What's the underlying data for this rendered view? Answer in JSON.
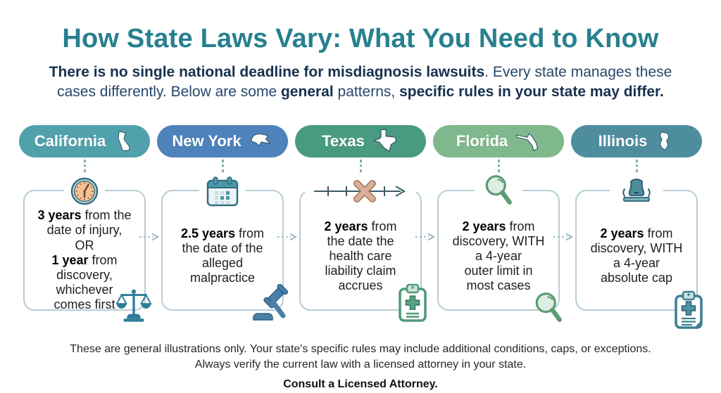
{
  "header": {
    "title": "How State Laws Vary: What You Need to Know",
    "subtitle_segments": [
      {
        "t": "There is no single national deadline for misdiagnosis lawsuits",
        "b": true
      },
      {
        "t": ". Every state manages these cases differently. Below are some "
      },
      {
        "t": "general",
        "b": true
      },
      {
        "t": " patterns, "
      },
      {
        "t": "specific rules in your state may differ.",
        "b": true
      }
    ]
  },
  "states": [
    {
      "name": "California",
      "header_color": "#51a1ad",
      "state_icon": "california-outline-icon",
      "top_icon": "clock-icon",
      "bottom_icon": "scales-of-justice-icon",
      "rule_segments": [
        {
          "t": "3 years",
          "b": true
        },
        {
          "t": " from the"
        },
        {
          "br": true
        },
        {
          "t": "date of injury,"
        },
        {
          "br": true
        },
        {
          "t": "OR"
        },
        {
          "br": true
        },
        {
          "t": "1 year",
          "b": true
        },
        {
          "t": " from"
        },
        {
          "br": true
        },
        {
          "t": "discovery,"
        },
        {
          "br": true
        },
        {
          "t": "whichever"
        },
        {
          "br": true
        },
        {
          "t": "comes first"
        }
      ]
    },
    {
      "name": "New York",
      "header_color": "#4d82ba",
      "state_icon": "new-york-outline-icon",
      "top_icon": "calendar-icon",
      "bottom_icon": "gavel-icon",
      "rule_segments": [
        {
          "t": "2.5 years",
          "b": true
        },
        {
          "t": " from"
        },
        {
          "br": true
        },
        {
          "t": "the date of the"
        },
        {
          "br": true
        },
        {
          "t": "alleged"
        },
        {
          "br": true
        },
        {
          "t": "malpractice"
        }
      ]
    },
    {
      "name": "Texas",
      "header_color": "#489a81",
      "state_icon": "texas-outline-icon",
      "top_icon": "timeline-icon",
      "bottom_icon": "medical-clipboard-icon",
      "rule_segments": [
        {
          "t": "2 years",
          "b": true
        },
        {
          "t": " from"
        },
        {
          "br": true
        },
        {
          "t": "the date the"
        },
        {
          "br": true
        },
        {
          "t": "health care"
        },
        {
          "br": true
        },
        {
          "t": "liability claim"
        },
        {
          "br": true
        },
        {
          "t": "accrues"
        }
      ]
    },
    {
      "name": "Florida",
      "header_color": "#7fb88c",
      "state_icon": "florida-outline-icon",
      "top_icon": "magnifier-icon",
      "bottom_icon": "magnifier-icon",
      "rule_segments": [
        {
          "t": "2 years",
          "b": true
        },
        {
          "t": " from"
        },
        {
          "br": true
        },
        {
          "t": "discovery, WITH"
        },
        {
          "br": true
        },
        {
          "t": "a 4-year"
        },
        {
          "br": true
        },
        {
          "t": "outer limit in"
        },
        {
          "br": true
        },
        {
          "t": "most cases"
        }
      ]
    },
    {
      "name": "Illinois",
      "header_color": "#4e8d9e",
      "state_icon": "illinois-outline-icon",
      "top_icon": "bell-icon",
      "bottom_icon": "medical-clipboard-icon",
      "rule_segments": [
        {
          "t": "2 years",
          "b": true
        },
        {
          "t": " from"
        },
        {
          "br": true
        },
        {
          "t": "discovery, WITH"
        },
        {
          "br": true
        },
        {
          "t": "a 4-year"
        },
        {
          "br": true
        },
        {
          "t": "absolute cap"
        }
      ]
    }
  ],
  "footer": {
    "line1": "These are general illustrations only. Your state's specific rules may include additional conditions, caps, or exceptions.",
    "line2": "Always verify the current law with a licensed attorney in your state.",
    "line3": "Consult a Licensed Attorney."
  },
  "colors": {
    "title": "#27808f",
    "subtitle": "#27476b",
    "card_border": "#b7cdd5",
    "arrow": "#9bb7be",
    "body_text": "#1f1f1f",
    "footer_text": "#262626"
  }
}
